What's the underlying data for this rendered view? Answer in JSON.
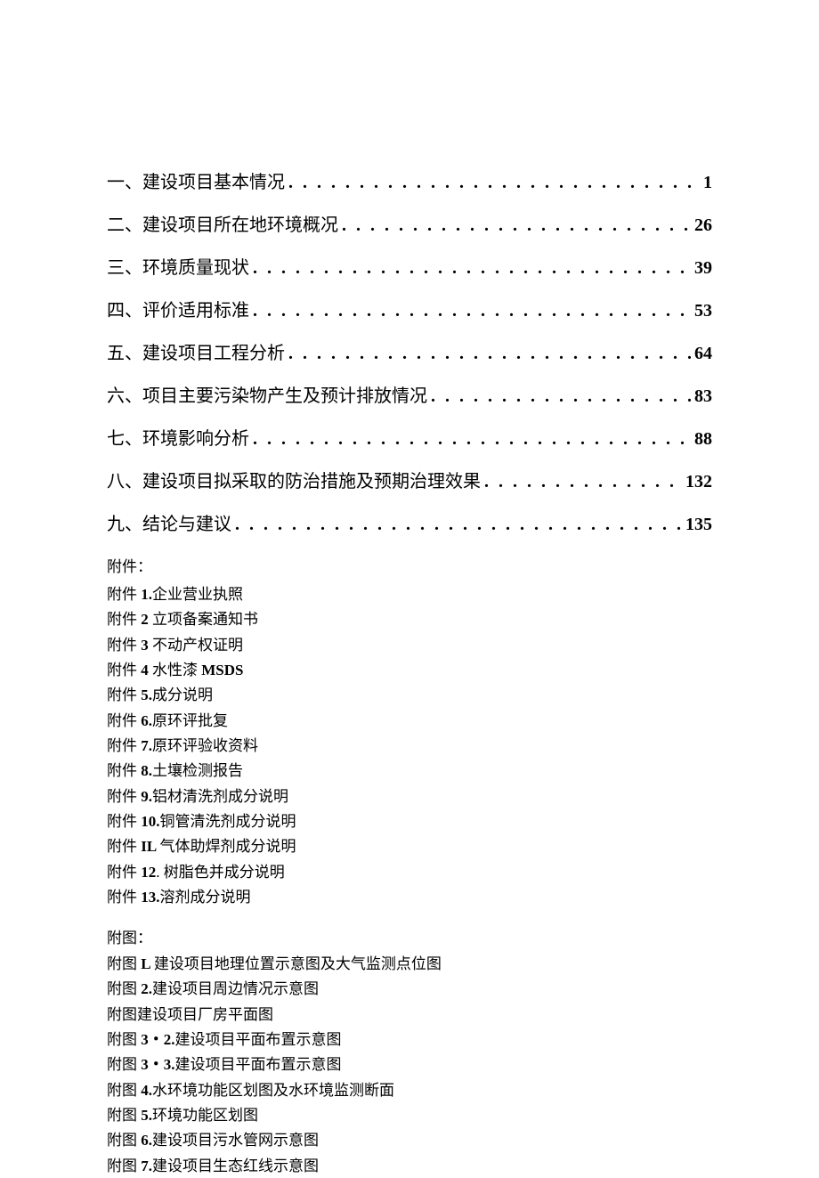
{
  "toc": [
    {
      "title": "一、建设项目基本情况",
      "page": "1"
    },
    {
      "title": "二、建设项目所在地环境概况",
      "page": "26"
    },
    {
      "title": "三、环境质量现状",
      "page": "39"
    },
    {
      "title": "四、评价适用标准",
      "page": "53"
    },
    {
      "title": "五、建设项目工程分析",
      "page": "64"
    },
    {
      "title": "六、项目主要污染物产生及预计排放情况",
      "page": "83"
    },
    {
      "title": "七、环境影响分析",
      "page": "88"
    },
    {
      "title": "八、建设项目拟采取的防治措施及预期治理效果",
      "page": "132"
    },
    {
      "title": "九、结论与建议",
      "page": "135"
    }
  ],
  "attachments_label": "附件：",
  "attachments": [
    {
      "num": "1.",
      "text": "企业营业执照"
    },
    {
      "num": "2 ",
      "text": "立项备案通知书"
    },
    {
      "num": "3 ",
      "text": "不动产权证明"
    },
    {
      "num": "4 ",
      "text": "水性漆 MSDS",
      "bold_suffix": true
    },
    {
      "num": "5.",
      "text": "成分说明"
    },
    {
      "num": "6.",
      "text": "原环评批复"
    },
    {
      "num": "7.",
      "text": "原环评验收资料"
    },
    {
      "num": "8.",
      "text": "土壤检测报告"
    },
    {
      "num": "9.",
      "text": "铝材清洗剂成分说明"
    },
    {
      "num": "10.",
      "text": "铜管清洗剂成分说明"
    },
    {
      "num": "IL ",
      "text": "气体助焊剂成分说明"
    },
    {
      "num": "12",
      "text": ". 树脂色并成分说明"
    },
    {
      "num": "13.",
      "text": "溶剂成分说明"
    }
  ],
  "figures_label": "附图：",
  "figures": [
    {
      "num": "L ",
      "text": "建设项目地理位置示意图及大气监测点位图"
    },
    {
      "num": "2.",
      "text": "建设项目周边情况示意图"
    },
    {
      "num": "",
      "text": "建设项目厂房平面图"
    },
    {
      "num": "3・2.",
      "text": "建设项目平面布置示意图"
    },
    {
      "num": "3・3.",
      "text": "建设项目平面布置示意图"
    },
    {
      "num": "4.",
      "text": "水环境功能区划图及水环境监测断面"
    },
    {
      "num": "5.",
      "text": "环境功能区划图"
    },
    {
      "num": "6.",
      "text": "建设项目污水管网示意图"
    },
    {
      "num": "7.",
      "text": "建设项目生态红线示意图"
    }
  ],
  "att_prefix": "附件 ",
  "fig_prefix": "附图 ",
  "fig_prefix_nonspace": "附图",
  "leader": " . . . . . . . . . . . . . . . . . . . . . . . . . . . . . . . . . . . . . . . . . . . . . . . . . . . . . . . . . . . . . . . . . . . . . . . . . ."
}
